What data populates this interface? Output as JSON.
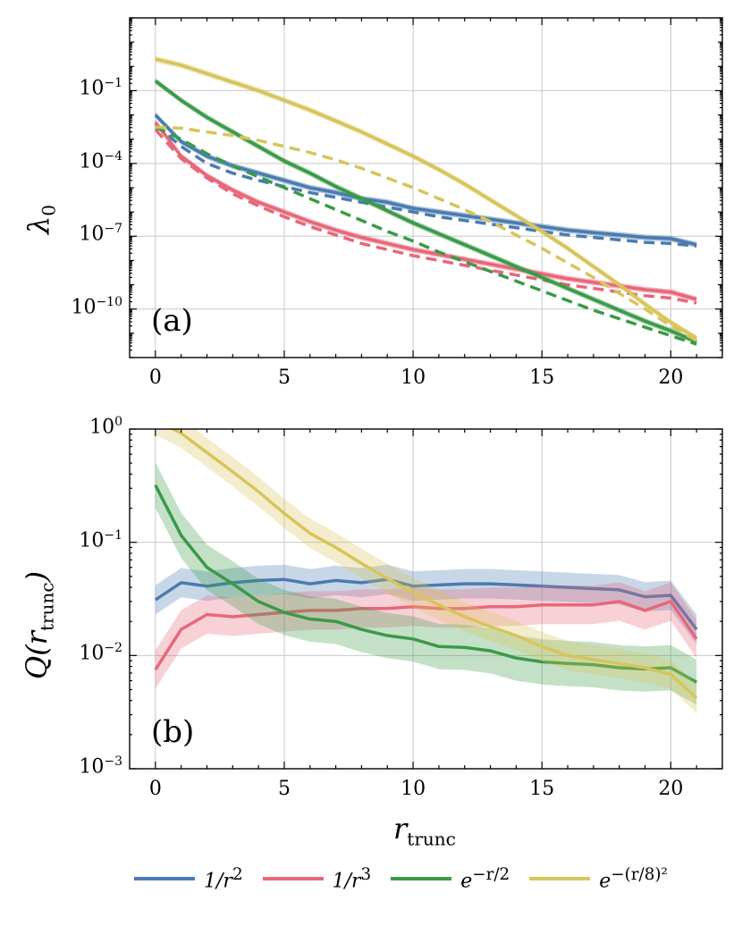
{
  "chart_data": [
    {
      "type": "line",
      "panel_label": "(a)",
      "xlabel": "",
      "ylabel_main": "λ",
      "ylabel_sub": "0",
      "yscale": "log",
      "xlim": [
        -1,
        22
      ],
      "ylim_exp": [
        -12,
        2
      ],
      "x_ticks": [
        0,
        5,
        10,
        15,
        20
      ],
      "y_ticks": [
        {
          "base": "10",
          "exp": "−1",
          "value_exp": -1
        },
        {
          "base": "10",
          "exp": "−4",
          "value_exp": -4
        },
        {
          "base": "10",
          "exp": "−7",
          "value_exp": -7
        },
        {
          "base": "10",
          "exp": "−10",
          "value_exp": -10
        }
      ],
      "x": [
        0,
        1,
        2,
        3,
        4,
        5,
        6,
        7,
        8,
        9,
        10,
        11,
        12,
        13,
        14,
        15,
        16,
        17,
        18,
        19,
        20,
        21
      ],
      "series": [
        {
          "name": "1/r²",
          "color": "#4a7bb0",
          "style": "solid",
          "log10_values": [
            -2.0,
            -3.1,
            -3.7,
            -4.1,
            -4.4,
            -4.7,
            -5.0,
            -5.2,
            -5.45,
            -5.6,
            -5.85,
            -6.0,
            -6.15,
            -6.3,
            -6.45,
            -6.6,
            -6.75,
            -6.85,
            -6.95,
            -7.05,
            -7.1,
            -7.35
          ]
        },
        {
          "name": "1/r² (dashed)",
          "color": "#4a7bb0",
          "style": "dashed",
          "log10_values": [
            -2.4,
            -3.3,
            -4.0,
            -4.4,
            -4.7,
            -4.95,
            -5.2,
            -5.4,
            -5.6,
            -5.8,
            -6.0,
            -6.2,
            -6.35,
            -6.5,
            -6.65,
            -6.8,
            -6.95,
            -7.05,
            -7.15,
            -7.25,
            -7.3,
            -7.4
          ]
        },
        {
          "name": "1/r³",
          "color": "#e8677a",
          "style": "solid",
          "log10_values": [
            -2.3,
            -3.7,
            -4.5,
            -5.1,
            -5.6,
            -6.0,
            -6.4,
            -6.75,
            -7.05,
            -7.3,
            -7.55,
            -7.75,
            -7.95,
            -8.15,
            -8.35,
            -8.55,
            -8.75,
            -8.9,
            -9.05,
            -9.2,
            -9.3,
            -9.6
          ]
        },
        {
          "name": "1/r³ (dashed)",
          "color": "#e8677a",
          "style": "dashed",
          "log10_values": [
            -2.6,
            -3.8,
            -4.6,
            -5.25,
            -5.75,
            -6.2,
            -6.6,
            -6.95,
            -7.3,
            -7.55,
            -7.8,
            -8.0,
            -8.2,
            -8.4,
            -8.6,
            -8.8,
            -9.0,
            -9.15,
            -9.3,
            -9.45,
            -9.55,
            -9.75
          ]
        },
        {
          "name": "e^{−r/2}",
          "color": "#3a9a48",
          "style": "solid",
          "log10_values": [
            -0.6,
            -1.4,
            -2.1,
            -2.7,
            -3.3,
            -3.9,
            -4.4,
            -4.95,
            -5.45,
            -5.95,
            -6.45,
            -6.9,
            -7.35,
            -7.8,
            -8.25,
            -8.7,
            -9.15,
            -9.6,
            -10.05,
            -10.5,
            -10.9,
            -11.35
          ]
        },
        {
          "name": "e^{−r/2} (dashed)",
          "color": "#3a9a48",
          "style": "dashed",
          "log10_values": [
            -2.5,
            -3.0,
            -3.6,
            -4.1,
            -4.55,
            -5.0,
            -5.45,
            -5.9,
            -6.35,
            -6.8,
            -7.2,
            -7.65,
            -8.05,
            -8.45,
            -8.85,
            -9.25,
            -9.65,
            -10.05,
            -10.4,
            -10.75,
            -11.1,
            -11.45
          ]
        },
        {
          "name": "e^{−(r/8)²}",
          "color": "#d8c45a",
          "style": "solid",
          "log10_values": [
            0.3,
            0.05,
            -0.3,
            -0.65,
            -1.0,
            -1.4,
            -1.8,
            -2.25,
            -2.7,
            -3.2,
            -3.7,
            -4.25,
            -4.85,
            -5.5,
            -6.15,
            -6.8,
            -7.5,
            -8.25,
            -9.0,
            -9.8,
            -10.55,
            -11.2
          ]
        },
        {
          "name": "e^{−(r/8)²} (dashed)",
          "color": "#d8c45a",
          "style": "dashed",
          "log10_values": [
            -2.5,
            -2.55,
            -2.7,
            -2.85,
            -3.05,
            -3.3,
            -3.55,
            -3.85,
            -4.2,
            -4.6,
            -5.0,
            -5.45,
            -5.9,
            -6.4,
            -6.95,
            -7.5,
            -8.1,
            -8.7,
            -9.35,
            -10.0,
            -10.7,
            -11.3
          ]
        }
      ]
    },
    {
      "type": "line",
      "panel_label": "(b)",
      "xlabel_main": "r",
      "xlabel_sub": "trunc",
      "ylabel_main": "Q(r",
      "ylabel_sub": "trunc",
      "ylabel_close": ")",
      "yscale": "log",
      "xlim": [
        -1,
        22
      ],
      "ylim_exp": [
        -3,
        0
      ],
      "x_ticks": [
        0,
        5,
        10,
        15,
        20
      ],
      "y_ticks": [
        {
          "base": "10",
          "exp": "0",
          "value_exp": 0
        },
        {
          "base": "10",
          "exp": "−1",
          "value_exp": -1
        },
        {
          "base": "10",
          "exp": "−2",
          "value_exp": -2
        },
        {
          "base": "10",
          "exp": "−3",
          "value_exp": -3
        }
      ],
      "x": [
        0,
        1,
        2,
        3,
        4,
        5,
        6,
        7,
        8,
        9,
        10,
        11,
        12,
        13,
        14,
        15,
        16,
        17,
        18,
        19,
        20,
        21
      ],
      "series": [
        {
          "name": "1/r²",
          "color": "#4a7bb0",
          "values": [
            0.031,
            0.044,
            0.041,
            0.044,
            0.046,
            0.047,
            0.043,
            0.046,
            0.044,
            0.047,
            0.041,
            0.042,
            0.043,
            0.043,
            0.042,
            0.041,
            0.04,
            0.039,
            0.038,
            0.033,
            0.034,
            0.017
          ],
          "band_log_halfwidth": 0.13
        },
        {
          "name": "1/r³",
          "color": "#e8677a",
          "values": [
            0.0075,
            0.017,
            0.023,
            0.022,
            0.023,
            0.024,
            0.025,
            0.025,
            0.026,
            0.026,
            0.027,
            0.026,
            0.026,
            0.027,
            0.027,
            0.028,
            0.028,
            0.028,
            0.03,
            0.025,
            0.03,
            0.014
          ],
          "band_log_halfwidth": 0.17
        },
        {
          "name": "e^{−r/2}",
          "color": "#3a9a48",
          "values": [
            0.32,
            0.115,
            0.06,
            0.043,
            0.03,
            0.024,
            0.021,
            0.02,
            0.017,
            0.015,
            0.014,
            0.012,
            0.0118,
            0.011,
            0.0095,
            0.0088,
            0.0085,
            0.0083,
            0.0078,
            0.0076,
            0.0078,
            0.0058
          ],
          "band_log_halfwidth": 0.2
        },
        {
          "name": "e^{−(r/8)²}",
          "color": "#d8c45a",
          "values": [
            1.2,
            0.92,
            0.62,
            0.42,
            0.28,
            0.18,
            0.12,
            0.09,
            0.065,
            0.048,
            0.036,
            0.028,
            0.022,
            0.018,
            0.015,
            0.012,
            0.01,
            0.0092,
            0.0085,
            0.0078,
            0.0068,
            0.0042
          ],
          "band_log_halfwidth": 0.13
        }
      ]
    }
  ],
  "legend": [
    {
      "label_main": "1/r",
      "label_sup": "2",
      "color": "#4a7bb0"
    },
    {
      "label_main": "1/r",
      "label_sup": "3",
      "color": "#e8677a"
    },
    {
      "label_main": "e",
      "label_sup": "−r/2",
      "color": "#3a9a48"
    },
    {
      "label_main": "e",
      "label_sup": "−(r/8)²",
      "color": "#d8c45a"
    }
  ]
}
